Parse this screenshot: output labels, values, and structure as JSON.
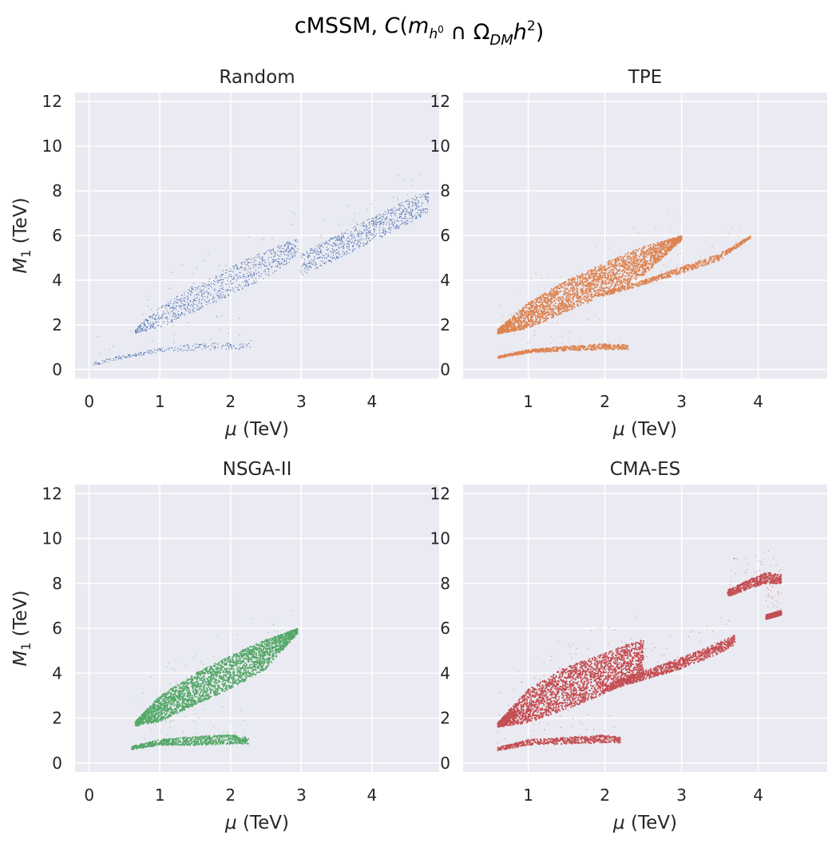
{
  "figure": {
    "title_prefix": "cMSSM, ",
    "title_math": {
      "func": "C",
      "open": "(",
      "m": "m",
      "h": "h",
      "zero": "0",
      "cap": " ∩ ",
      "omega": "Ω",
      "dm": "DM",
      "h2": "h",
      "two": "2",
      "close": ")"
    },
    "xlabel": {
      "symbol": "μ",
      "unit": " (TeV)"
    },
    "ylabel": {
      "symbol": "M",
      "sub": "1",
      "unit": " (TeV)"
    }
  },
  "chart_data": [
    {
      "type": "scatter",
      "title": "Random",
      "color": "#4c72b0",
      "density": "sparse",
      "xlim": [
        -0.2,
        4.95
      ],
      "ylim": [
        -0.4,
        12.4
      ],
      "xticks": [
        0,
        1,
        2,
        3,
        4
      ],
      "yticks": [
        0,
        2,
        4,
        6,
        8,
        10,
        12
      ],
      "grid": true,
      "regions": [
        {
          "name": "upper-band",
          "x": [
            0.65,
            1.0,
            1.5,
            2.0,
            2.5,
            2.95
          ],
          "y_low": [
            1.6,
            1.85,
            2.6,
            3.3,
            4.1,
            5.0
          ],
          "y_high": [
            1.8,
            2.8,
            3.8,
            4.6,
            5.3,
            5.9
          ]
        },
        {
          "name": "lower-band",
          "x": [
            0.05,
            0.5,
            1.0,
            1.5,
            2.0,
            2.3
          ],
          "y_low": [
            0.15,
            0.5,
            0.75,
            0.85,
            0.9,
            0.9
          ],
          "y_high": [
            0.3,
            0.65,
            0.95,
            1.15,
            1.2,
            1.15
          ]
        },
        {
          "name": "high-mu-tail",
          "x": [
            3.0,
            3.5,
            4.0,
            4.5,
            4.8
          ],
          "y_low": [
            4.2,
            4.9,
            5.7,
            6.5,
            7.0
          ],
          "y_high": [
            5.2,
            6.0,
            6.8,
            7.6,
            8.0
          ]
        }
      ]
    },
    {
      "type": "scatter",
      "title": "TPE",
      "color": "#dd8452",
      "density": "dense",
      "xlim": [
        0.15,
        4.9
      ],
      "ylim": [
        -0.4,
        12.4
      ],
      "xticks": [
        1,
        2,
        3,
        4
      ],
      "yticks": [
        0,
        2,
        4,
        6,
        8,
        10,
        12
      ],
      "grid": true,
      "regions": [
        {
          "name": "upper-wedge",
          "x": [
            0.6,
            1.0,
            1.5,
            2.0,
            2.5,
            3.0
          ],
          "y_low": [
            1.6,
            1.85,
            2.6,
            3.3,
            4.2,
            5.8
          ],
          "y_high": [
            1.8,
            3.0,
            4.0,
            4.8,
            5.5,
            6.0
          ]
        },
        {
          "name": "diagonal-strip",
          "x": [
            2.0,
            2.5,
            3.0,
            3.5,
            3.9
          ],
          "y_low": [
            3.3,
            3.8,
            4.3,
            4.9,
            5.9
          ],
          "y_high": [
            3.5,
            4.0,
            4.6,
            5.2,
            6.0
          ]
        },
        {
          "name": "lower-band",
          "x": [
            0.6,
            1.0,
            1.5,
            2.0,
            2.3
          ],
          "y_low": [
            0.5,
            0.75,
            0.85,
            0.9,
            0.9
          ],
          "y_high": [
            0.6,
            0.9,
            1.05,
            1.15,
            1.1
          ]
        }
      ]
    },
    {
      "type": "scatter",
      "title": "NSGA-II",
      "color": "#55a868",
      "density": "dense",
      "xlim": [
        -0.2,
        4.95
      ],
      "ylim": [
        -0.4,
        12.4
      ],
      "xticks": [
        0,
        1,
        2,
        3,
        4
      ],
      "yticks": [
        0,
        2,
        4,
        6,
        8,
        10,
        12
      ],
      "grid": true,
      "regions": [
        {
          "name": "upper-wedge",
          "x": [
            0.65,
            1.0,
            1.5,
            2.0,
            2.5,
            2.95
          ],
          "y_low": [
            1.65,
            1.85,
            2.6,
            3.3,
            4.2,
            5.8
          ],
          "y_high": [
            1.85,
            3.0,
            4.0,
            4.8,
            5.5,
            6.0
          ]
        },
        {
          "name": "lower-band",
          "x": [
            0.6,
            1.0,
            1.5,
            2.0,
            2.25
          ],
          "y_low": [
            0.6,
            0.8,
            0.8,
            0.85,
            0.85
          ],
          "y_high": [
            0.75,
            1.05,
            1.2,
            1.25,
            1.15
          ]
        }
      ]
    },
    {
      "type": "scatter",
      "title": "CMA-ES",
      "color": "#c44e52",
      "density": "dense",
      "xlim": [
        0.15,
        4.9
      ],
      "ylim": [
        -0.4,
        12.4
      ],
      "xticks": [
        1,
        2,
        3,
        4
      ],
      "yticks": [
        0,
        2,
        4,
        6,
        8,
        10,
        12
      ],
      "grid": true,
      "regions": [
        {
          "name": "upper-wedge",
          "x": [
            0.6,
            1.0,
            1.5,
            2.0,
            2.3,
            2.5
          ],
          "y_low": [
            1.6,
            1.8,
            2.4,
            3.1,
            3.6,
            3.9
          ],
          "y_high": [
            1.8,
            3.3,
            4.3,
            4.9,
            5.3,
            5.5
          ]
        },
        {
          "name": "diagonal-strip",
          "x": [
            2.0,
            2.5,
            3.0,
            3.5,
            3.7
          ],
          "y_low": [
            3.2,
            3.7,
            4.2,
            4.9,
            5.3
          ],
          "y_high": [
            3.5,
            4.1,
            4.7,
            5.4,
            5.7
          ]
        },
        {
          "name": "lower-band",
          "x": [
            0.6,
            1.0,
            1.5,
            2.0,
            2.2
          ],
          "y_low": [
            0.55,
            0.8,
            0.85,
            0.9,
            0.9
          ],
          "y_high": [
            0.7,
            1.05,
            1.15,
            1.25,
            1.15
          ]
        },
        {
          "name": "high-cluster",
          "x": [
            3.6,
            3.9,
            4.1,
            4.3
          ],
          "y_low": [
            7.4,
            7.8,
            8.0,
            8.0
          ],
          "y_high": [
            7.7,
            8.2,
            8.5,
            8.4
          ]
        },
        {
          "name": "small-strip",
          "x": [
            4.1,
            4.3
          ],
          "y_low": [
            6.4,
            6.6
          ],
          "y_high": [
            6.6,
            6.8
          ]
        }
      ]
    }
  ]
}
